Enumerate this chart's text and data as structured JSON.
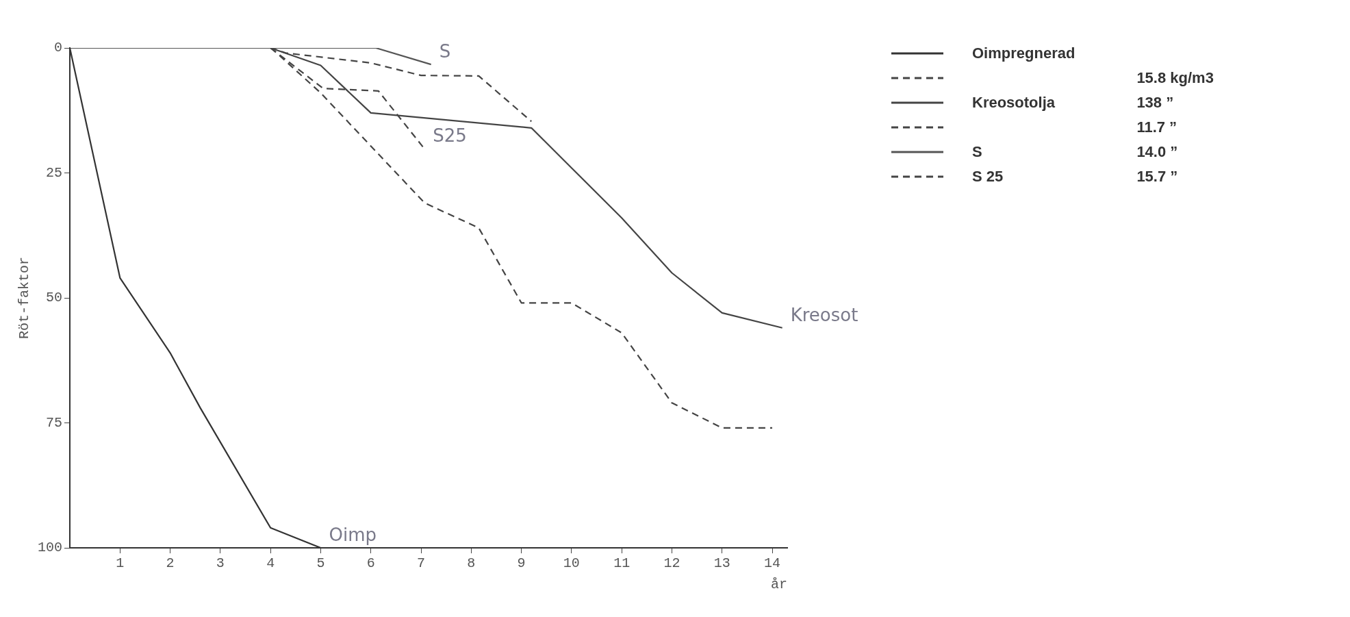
{
  "chart_data": {
    "type": "line",
    "ylabel": "Röt-faktor",
    "xlabel": "år",
    "xlim": [
      0,
      14.3
    ],
    "xticks": [
      1,
      2,
      3,
      4,
      5,
      6,
      7,
      8,
      9,
      10,
      11,
      12,
      13,
      14
    ],
    "ylim": [
      100,
      0
    ],
    "yticks": [
      0,
      25,
      50,
      75,
      100
    ],
    "grid": false,
    "legend": "top right",
    "marker": "none",
    "series": [
      {
        "name": "Oimpregnerad",
        "color": "#333333",
        "line_style": "solid",
        "x": [
          0,
          1,
          2,
          2.6,
          4,
          5
        ],
        "values": [
          0,
          46,
          61,
          72,
          96,
          100
        ]
      },
      {
        "color": "#444444",
        "line_style": "dashed",
        "x": [
          4,
          4.1,
          5,
          7.07,
          8.15,
          9,
          10,
          11,
          12,
          13,
          14
        ],
        "values": [
          0,
          0.8,
          9,
          31,
          36,
          51,
          51,
          57,
          71,
          76,
          76
        ]
      },
      {
        "name": "Kreosotolja",
        "color": "#444444",
        "line_style": "solid",
        "x": [
          4,
          5,
          6,
          9.2,
          10,
          11,
          12,
          13,
          14.2
        ],
        "values": [
          0,
          3.5,
          13,
          16,
          24,
          34,
          45,
          53,
          56
        ]
      },
      {
        "color": "#444444",
        "line_style": "dashed",
        "x": [
          4,
          4.3,
          6,
          7,
          8.15,
          9.2
        ],
        "values": [
          0,
          1,
          3,
          5.5,
          5.6,
          14.7
        ]
      },
      {
        "name": "S",
        "color": "#555555",
        "line_style": "solid",
        "x": [
          0,
          6.1,
          7.2
        ],
        "values": [
          0,
          0,
          3.3
        ]
      },
      {
        "name": "S 25",
        "color": "#444444",
        "line_style": "dashed",
        "x": [
          4,
          5.05,
          6.15,
          7.07
        ],
        "values": [
          0,
          8.1,
          8.6,
          20.2
        ]
      }
    ],
    "annotations": [
      {
        "text": "S",
        "x": 7.2,
        "y": 3.3
      },
      {
        "text": "S25",
        "x": 7.07,
        "y": 20.2
      },
      {
        "text": "Kreosot",
        "x": 14.2,
        "y": 56
      },
      {
        "text": "Oimp",
        "x": 5,
        "y": 100
      },
      "15.8 kg/m3",
      "138   ”",
      "11.7   ”",
      "14.0   ”",
      "15.7   ”"
    ]
  }
}
